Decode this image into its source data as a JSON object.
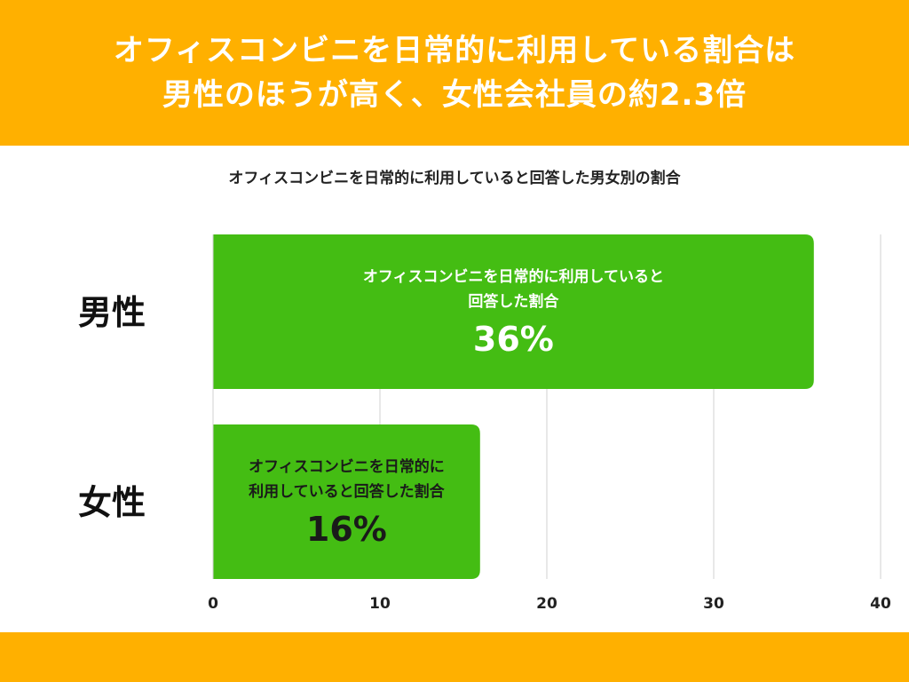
{
  "header": {
    "title_line1": "オフィスコンビニを日常的に利用している割合は",
    "title_line2": "男性のほうが高く、女性会社員の約2.3倍"
  },
  "chart_data": {
    "type": "bar",
    "orientation": "horizontal",
    "title": "オフィスコンビニを日常的に利用していると回答した男女別の割合",
    "categories": [
      "男性",
      "女性"
    ],
    "values": [
      36,
      16
    ],
    "value_labels": [
      "36%",
      "16%"
    ],
    "bar_captions": [
      [
        "オフィスコンビニを日常的に利用していると",
        "回答した割合"
      ],
      [
        "オフィスコンビニを日常的に",
        "利用していると回答した割合"
      ]
    ],
    "xticks": [
      "0",
      "10",
      "20",
      "30",
      "40"
    ],
    "xlim": [
      0,
      40
    ],
    "grid": true,
    "colors": {
      "bar": "#44BD13",
      "band": "#FFB000",
      "label_on_bar_1": "#ffffff",
      "label_on_bar_2": "#1a1a1a",
      "grid": "#d0d0d0"
    }
  }
}
